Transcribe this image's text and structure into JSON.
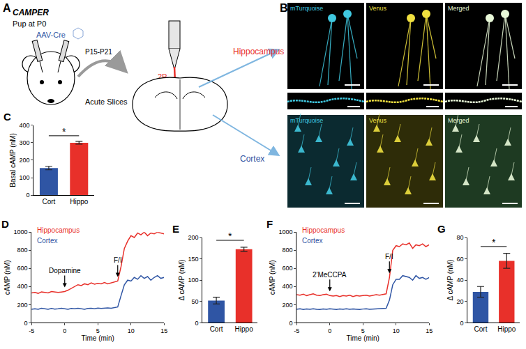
{
  "diagram": {
    "title": "A",
    "construct": "CAMPER",
    "pup": "Pup at P0",
    "virus": "AAV-Cre",
    "age": "P15-P21",
    "slices": "Acute Slices",
    "imaging": "2P",
    "regions": [
      {
        "name": "Hippocampus",
        "color": "#e8302a"
      },
      {
        "name": "Cortex",
        "color": "#2f55a4"
      }
    ]
  },
  "images": {
    "title": "B",
    "channels": [
      {
        "name": "mTurquoise",
        "color": "#40c8e0"
      },
      {
        "name": "Venus",
        "color": "#f0e040"
      },
      {
        "name": "Merged",
        "color": "#e8f8d8"
      }
    ]
  },
  "chart_data": [
    {
      "type": "bar",
      "title": "C",
      "categories": [
        "Cort",
        "Hippo"
      ],
      "values": [
        155,
        300
      ],
      "errors": [
        10,
        8
      ],
      "colors": [
        "#2f55a4",
        "#e8302a"
      ],
      "ylabel": "Basal cAMP (nM)",
      "ylim": [
        0,
        400
      ],
      "yticks": [
        0,
        100,
        200,
        300,
        400
      ],
      "significance": "*"
    },
    {
      "type": "line",
      "title": "D",
      "xlabel": "Time (min)",
      "ylabel": "cAMP (nM)",
      "legend": "upper left",
      "x": [
        -5,
        -4.5,
        -4,
        -3.5,
        -3,
        -2.5,
        -2,
        -1.5,
        -1,
        -0.5,
        0,
        0.5,
        1,
        1.5,
        2,
        2.5,
        3,
        3.5,
        4,
        4.5,
        5,
        5.5,
        6,
        6.5,
        7,
        7.5,
        8,
        8.5,
        9,
        9.5,
        10,
        10.5,
        11,
        11.5,
        12,
        12.5,
        13,
        13.5,
        14,
        14.5,
        15
      ],
      "series": [
        {
          "name": "Hippocampus",
          "color": "#e8302a",
          "values": [
            330,
            335,
            325,
            340,
            335,
            330,
            345,
            340,
            335,
            340,
            345,
            360,
            380,
            400,
            420,
            410,
            430,
            420,
            440,
            425,
            435,
            430,
            445,
            430,
            440,
            450,
            460,
            620,
            820,
            900,
            960,
            940,
            990,
            970,
            1000,
            960,
            990,
            980,
            1000,
            990,
            980
          ]
        },
        {
          "name": "Cortex",
          "color": "#2f55a4",
          "values": [
            150,
            155,
            150,
            160,
            155,
            150,
            158,
            152,
            155,
            160,
            155,
            150,
            158,
            155,
            160,
            155,
            150,
            158,
            160,
            155,
            162,
            158,
            160,
            165,
            160,
            170,
            175,
            300,
            420,
            470,
            460,
            500,
            480,
            520,
            490,
            510,
            470,
            500,
            520,
            490,
            500
          ]
        }
      ],
      "xlim": [
        -5,
        15
      ],
      "xticks": [
        -5,
        0,
        5,
        10,
        15
      ],
      "ylim": [
        0,
        1000
      ],
      "yticks": [
        0,
        200,
        400,
        600,
        800,
        1000
      ],
      "annotations": [
        {
          "text": "Dopamine",
          "x": 0
        },
        {
          "text": "F/I",
          "x": 8
        }
      ]
    },
    {
      "type": "bar",
      "title": "E",
      "categories": [
        "Cort",
        "Hippo"
      ],
      "values": [
        52,
        172
      ],
      "errors": [
        8,
        5
      ],
      "colors": [
        "#2f55a4",
        "#e8302a"
      ],
      "ylabel": "Δ cAMP (nM)",
      "ylim": [
        0,
        200
      ],
      "yticks": [
        0,
        50,
        100,
        150,
        200
      ],
      "significance": "*"
    },
    {
      "type": "line",
      "title": "F",
      "xlabel": "Time (min)",
      "ylabel": "cAMP (nM)",
      "legend": "upper left",
      "x": [
        -5,
        -4.5,
        -4,
        -3.5,
        -3,
        -2.5,
        -2,
        -1.5,
        -1,
        -0.5,
        0,
        0.5,
        1,
        1.5,
        2,
        2.5,
        3,
        3.5,
        4,
        4.5,
        5,
        5.5,
        6,
        6.5,
        7,
        7.5,
        8,
        8.5,
        9,
        9.5,
        10,
        10.5,
        11,
        11.5,
        12,
        12.5,
        13,
        13.5,
        14,
        14.5,
        15
      ],
      "series": [
        {
          "name": "Hippocampus",
          "color": "#e8302a",
          "values": [
            310,
            305,
            315,
            300,
            310,
            320,
            305,
            300,
            310,
            315,
            300,
            295,
            300,
            290,
            300,
            295,
            305,
            290,
            300,
            295,
            300,
            305,
            295,
            300,
            310,
            305,
            315,
            320,
            500,
            800,
            850,
            840,
            870,
            860,
            880,
            820,
            860,
            850,
            870,
            840,
            860
          ]
        },
        {
          "name": "Cortex",
          "color": "#2f55a4",
          "values": [
            150,
            155,
            148,
            152,
            150,
            155,
            150,
            148,
            152,
            150,
            155,
            150,
            148,
            152,
            150,
            155,
            150,
            152,
            150,
            148,
            152,
            155,
            150,
            152,
            150,
            155,
            158,
            160,
            250,
            420,
            480,
            480,
            520,
            510,
            500,
            470,
            520,
            490,
            500,
            480,
            500
          ]
        }
      ],
      "xlim": [
        -5,
        15
      ],
      "xticks": [
        -5,
        0,
        5,
        10,
        15
      ],
      "ylim": [
        0,
        1000
      ],
      "yticks": [
        0,
        200,
        400,
        600,
        800,
        1000
      ],
      "annotations": [
        {
          "text": "2'MeCCPA",
          "x": 0
        },
        {
          "text": "F/I",
          "x": 9
        }
      ]
    },
    {
      "type": "bar",
      "title": "G",
      "categories": [
        "Cort",
        "Hippo"
      ],
      "values": [
        29,
        58
      ],
      "errors": [
        5,
        7
      ],
      "colors": [
        "#2f55a4",
        "#e8302a"
      ],
      "ylabel": "Δ cAMP (nM)",
      "ylim": [
        0,
        80
      ],
      "yticks": [
        0,
        20,
        40,
        60,
        80
      ],
      "significance": "*"
    }
  ]
}
